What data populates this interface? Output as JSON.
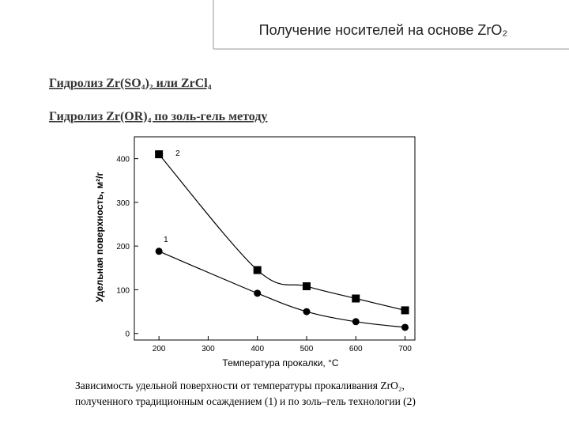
{
  "slide": {
    "title": "Получение носителей на основе ZrO₂",
    "lines": [
      "Гидролиз Zr(SO₄)₂ или ZrCl₄",
      "Гидролиз Zr(OR)₄ по золь-гель методу"
    ],
    "caption": [
      "Зависимость удельной поверхности от температуры прокаливания ZrO₂,",
      "полученного традиционным осаждением (1) и по золь–гель технологии (2)"
    ]
  },
  "chart_data": {
    "type": "line",
    "x_label": "Температура прокалки, °С",
    "y_label": "Удельная поверхность, м²/г",
    "x": [
      200,
      400,
      500,
      600,
      700
    ],
    "series": [
      {
        "name": "1",
        "color": "#000000",
        "marker": "circle",
        "values": [
          188,
          92,
          50,
          27,
          14
        ]
      },
      {
        "name": "2",
        "color": "#000000",
        "marker": "square",
        "values": [
          410,
          145,
          108,
          80,
          53
        ]
      }
    ],
    "xlim": [
      150,
      720
    ],
    "ylim": [
      -15,
      450
    ],
    "xticks": [
      200,
      300,
      400,
      500,
      600,
      700
    ],
    "yticks": [
      0,
      100,
      200,
      300,
      400
    ]
  }
}
